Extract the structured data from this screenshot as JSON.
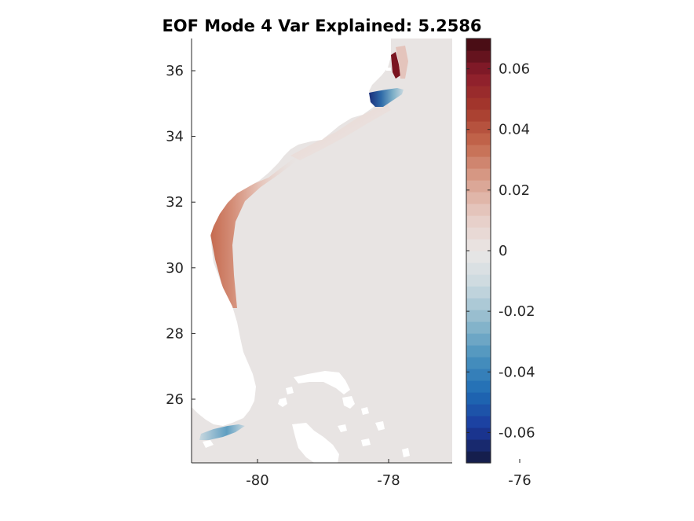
{
  "chart_data": {
    "type": "heatmap",
    "title": "EOF Mode 4 Var Explained: 5.2586",
    "xlabel": "",
    "ylabel": "",
    "x_ticks": [
      {
        "value": -80,
        "label": "-80"
      },
      {
        "value": -78,
        "label": "-78"
      },
      {
        "value": -76,
        "label": "-76"
      }
    ],
    "y_ticks": [
      {
        "value": 36,
        "label": "36"
      },
      {
        "value": 34,
        "label": "34"
      },
      {
        "value": 32,
        "label": "32"
      },
      {
        "value": 30,
        "label": "30"
      },
      {
        "value": 28,
        "label": "28"
      },
      {
        "value": 26,
        "label": "26"
      }
    ],
    "xlim": [
      -82.0,
      -74.0
    ],
    "ylim": [
      24.0,
      37.0
    ],
    "grid": false,
    "colorbar": {
      "clim": [
        -0.07,
        0.07
      ],
      "levels": 36,
      "ticks": [
        {
          "value": 0.06,
          "label": "0.06"
        },
        {
          "value": 0.04,
          "label": "0.04"
        },
        {
          "value": 0.02,
          "label": "0.02"
        },
        {
          "value": 0,
          "label": "0"
        },
        {
          "value": -0.02,
          "label": "-0.02"
        },
        {
          "value": -0.04,
          "label": "-0.04"
        },
        {
          "value": -0.06,
          "label": "-0.06"
        }
      ],
      "colors_low_to_high": [
        "#14183d",
        "#1b3a9e",
        "#1f6bb4",
        "#4a92be",
        "#8fb9cc",
        "#c9d8df",
        "#eae7e6",
        "#e6cbc4",
        "#d9a08e",
        "#c56a4f",
        "#a63a2c",
        "#8c1c2c",
        "#3d0a10"
      ]
    },
    "field_description_values": {
      "background_offshore": 0.0,
      "georgia_coast_max": 0.035,
      "carolina_coast": 0.005,
      "pamlico_sound_min": -0.06,
      "outer_banks_north_max": 0.07,
      "florida_keys": -0.025
    },
    "colors": {
      "land": "#ffffff",
      "sea_zero": "#e8e4e3"
    }
  }
}
